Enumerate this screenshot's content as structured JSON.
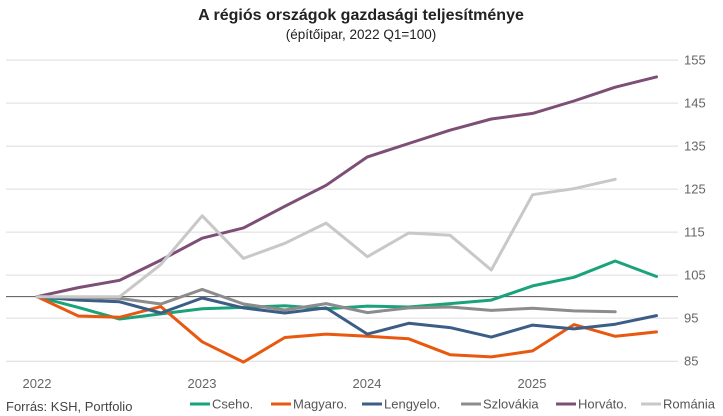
{
  "chart_data": {
    "type": "line",
    "title": "A régiós országok gazdasági teljesítménye",
    "subtitle": "(építőipar, 2022 Q1=100)",
    "source": "Forrás: KSH, Portfolio",
    "x_tick_labels": [
      "2022",
      "2023",
      "2024",
      "2025"
    ],
    "y_ticks": [
      85,
      95,
      105,
      115,
      125,
      135,
      145,
      155
    ],
    "ylim": [
      84,
      157
    ],
    "reference_line": 100,
    "grid": "horizontal",
    "series": [
      {
        "name": "Cseho.",
        "color": "#1aa37a",
        "values": [
          100,
          97.5,
          94.8,
          96,
          97.2,
          97.5,
          97.9,
          97.2,
          97.8,
          97.6,
          98.4,
          99.2,
          102.5,
          104.5,
          108.3,
          104.7
        ]
      },
      {
        "name": "Magyaro.",
        "color": "#e8580f",
        "values": [
          100,
          95.5,
          95.2,
          97.7,
          89.5,
          84.8,
          90.5,
          91.3,
          90.8,
          90.2,
          86.5,
          86,
          87.4,
          93.5,
          90.8,
          91.8
        ]
      },
      {
        "name": "Lengyelo.",
        "color": "#3b5d86",
        "values": [
          100,
          99.2,
          98.8,
          96.2,
          99.7,
          97.4,
          96.2,
          97.4,
          91.3,
          93.8,
          92.8,
          90.6,
          93.4,
          92.5,
          93.6,
          95.6
        ]
      },
      {
        "name": "Szlovákia",
        "color": "#8c8c8c",
        "values": [
          100,
          99.8,
          99.6,
          98.3,
          101.7,
          98.3,
          96.9,
          98.4,
          96.3,
          97.4,
          97.6,
          96.8,
          97.3,
          96.7,
          96.5
        ]
      },
      {
        "name": "Horváto.",
        "color": "#7d4f76",
        "values": [
          100,
          102.1,
          103.8,
          108.5,
          113.6,
          116,
          121,
          125.9,
          132.5,
          135.6,
          138.7,
          141.3,
          142.6,
          145.5,
          148.7,
          151.1
        ]
      },
      {
        "name": "Románia",
        "color": "#c8c8c8",
        "values": [
          100,
          100,
          100,
          107.5,
          118.8,
          108.9,
          112.4,
          117.1,
          109.3,
          114.8,
          114.3,
          106.2,
          123.7,
          125.1,
          127.3
        ]
      }
    ]
  }
}
